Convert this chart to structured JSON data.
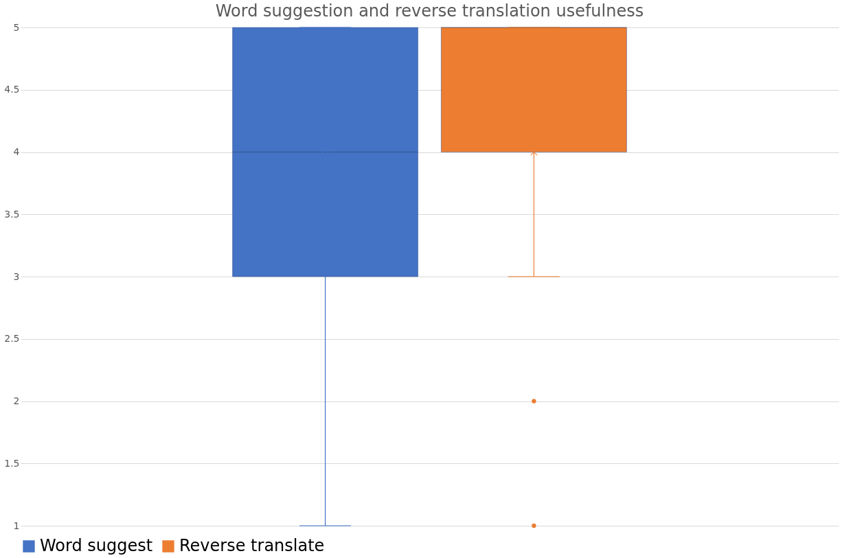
{
  "chart_data": {
    "type": "box",
    "title": "Word suggestion and reverse translation usefulness",
    "categories": [
      null
    ],
    "series": [
      {
        "name": "Word suggest",
        "color": "#4472c4",
        "boxes": [
          {
            "low": 1,
            "q1": 3,
            "median": 4,
            "q3": 5,
            "high": 5,
            "mean": 3.98
          }
        ]
      },
      {
        "name": "Reverse translate",
        "color": "#ed7d31",
        "boxes": [
          {
            "low": 3,
            "q1": 4,
            "median": 5,
            "q3": 5,
            "high": 5,
            "mean": 4,
            "outliers": [
              2,
              1
            ]
          }
        ]
      }
    ],
    "ylim": [
      1,
      5
    ],
    "yticks": [
      1,
      1.5,
      2,
      2.5,
      3,
      3.5,
      4,
      4.5,
      5
    ],
    "grid": "y",
    "legend": "bottom",
    "tick_labels": "y",
    "marker": "cross"
  }
}
